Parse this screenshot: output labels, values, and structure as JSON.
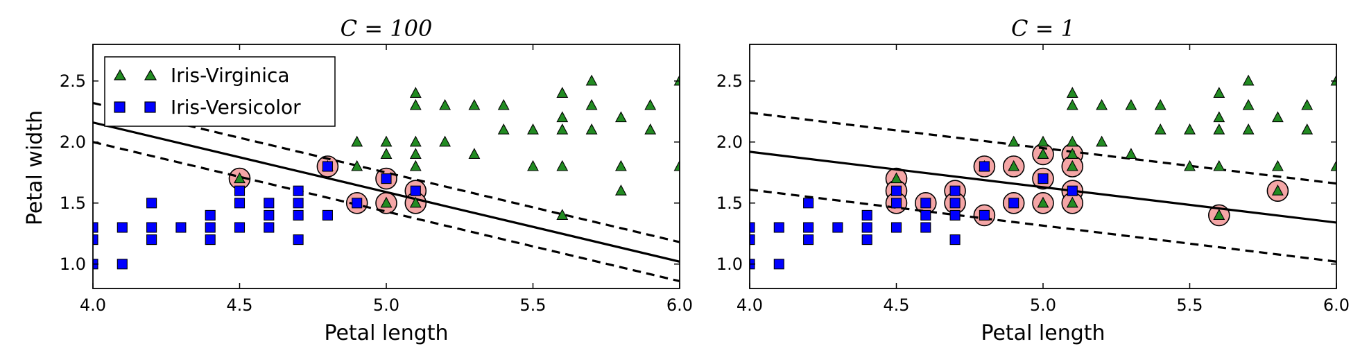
{
  "chart_data": [
    {
      "type": "scatter",
      "title": "C = 100",
      "xlabel": "Petal length",
      "ylabel": "Petal width",
      "xlim": [
        4.0,
        6.0
      ],
      "ylim": [
        0.8,
        2.8
      ],
      "xticks": [
        "4.0",
        "4.5",
        "5.0",
        "5.5",
        "6.0"
      ],
      "yticks": [
        "1.0",
        "1.5",
        "2.0",
        "2.5"
      ],
      "grid": false,
      "legend": {
        "placement": "top-left",
        "entries": [
          "Iris-Virginica",
          "Iris-Versicolor"
        ]
      },
      "series": [
        {
          "name": "Iris-Virginica",
          "marker": "triangle",
          "color": "#228B22",
          "points": [
            [
              4.5,
              1.7
            ],
            [
              4.8,
              1.8
            ],
            [
              4.9,
              2.0
            ],
            [
              4.9,
              1.8
            ],
            [
              5.0,
              2.0
            ],
            [
              5.0,
              1.9
            ],
            [
              5.0,
              1.5
            ],
            [
              5.1,
              2.4
            ],
            [
              5.1,
              2.3
            ],
            [
              5.1,
              2.0
            ],
            [
              5.1,
              1.9
            ],
            [
              5.1,
              1.8
            ],
            [
              5.1,
              1.5
            ],
            [
              5.2,
              2.3
            ],
            [
              5.2,
              2.0
            ],
            [
              5.3,
              2.3
            ],
            [
              5.3,
              1.9
            ],
            [
              5.4,
              2.3
            ],
            [
              5.4,
              2.1
            ],
            [
              5.5,
              2.1
            ],
            [
              5.5,
              1.8
            ],
            [
              5.6,
              2.4
            ],
            [
              5.6,
              2.2
            ],
            [
              5.6,
              2.1
            ],
            [
              5.6,
              1.8
            ],
            [
              5.6,
              1.4
            ],
            [
              5.7,
              2.5
            ],
            [
              5.7,
              2.3
            ],
            [
              5.7,
              2.1
            ],
            [
              5.8,
              2.2
            ],
            [
              5.8,
              1.8
            ],
            [
              5.8,
              1.6
            ],
            [
              5.9,
              2.3
            ],
            [
              5.9,
              2.1
            ],
            [
              6.0,
              2.5
            ],
            [
              6.0,
              1.8
            ]
          ]
        },
        {
          "name": "Iris-Versicolor",
          "marker": "square",
          "color": "#0000FF",
          "points": [
            [
              4.0,
              1.3
            ],
            [
              4.0,
              1.2
            ],
            [
              4.0,
              1.0
            ],
            [
              4.1,
              1.3
            ],
            [
              4.1,
              1.0
            ],
            [
              4.2,
              1.5
            ],
            [
              4.2,
              1.3
            ],
            [
              4.2,
              1.2
            ],
            [
              4.3,
              1.3
            ],
            [
              4.4,
              1.4
            ],
            [
              4.4,
              1.3
            ],
            [
              4.4,
              1.2
            ],
            [
              4.5,
              1.6
            ],
            [
              4.5,
              1.5
            ],
            [
              4.5,
              1.3
            ],
            [
              4.6,
              1.5
            ],
            [
              4.6,
              1.4
            ],
            [
              4.6,
              1.3
            ],
            [
              4.7,
              1.6
            ],
            [
              4.7,
              1.5
            ],
            [
              4.7,
              1.4
            ],
            [
              4.7,
              1.2
            ],
            [
              4.8,
              1.8
            ],
            [
              4.8,
              1.4
            ],
            [
              4.9,
              1.5
            ],
            [
              5.0,
              1.7
            ],
            [
              5.1,
              1.6
            ]
          ]
        }
      ],
      "support_vectors": [
        [
          4.5,
          1.7
        ],
        [
          4.8,
          1.8
        ],
        [
          4.9,
          1.5
        ],
        [
          5.0,
          1.7
        ],
        [
          5.0,
          1.5
        ],
        [
          5.1,
          1.6
        ],
        [
          5.1,
          1.5
        ]
      ],
      "decision_boundary": {
        "x": [
          4.0,
          6.0
        ],
        "y": [
          2.16,
          1.02
        ]
      },
      "margins": [
        {
          "x": [
            4.0,
            6.0
          ],
          "y": [
            2.32,
            1.18
          ]
        },
        {
          "x": [
            4.0,
            6.0
          ],
          "y": [
            2.0,
            0.86
          ]
        }
      ]
    },
    {
      "type": "scatter",
      "title": "C = 1",
      "xlabel": "Petal length",
      "ylabel": "",
      "xlim": [
        4.0,
        6.0
      ],
      "ylim": [
        0.8,
        2.8
      ],
      "xticks": [
        "4.0",
        "4.5",
        "5.0",
        "5.5",
        "6.0"
      ],
      "yticks": [
        "1.0",
        "1.5",
        "2.0",
        "2.5"
      ],
      "grid": false,
      "series": [
        {
          "name": "Iris-Virginica",
          "marker": "triangle",
          "color": "#228B22",
          "points": [
            [
              4.5,
              1.7
            ],
            [
              4.8,
              1.8
            ],
            [
              4.9,
              2.0
            ],
            [
              4.9,
              1.8
            ],
            [
              5.0,
              2.0
            ],
            [
              5.0,
              1.9
            ],
            [
              5.0,
              1.5
            ],
            [
              5.1,
              2.4
            ],
            [
              5.1,
              2.3
            ],
            [
              5.1,
              2.0
            ],
            [
              5.1,
              1.9
            ],
            [
              5.1,
              1.8
            ],
            [
              5.1,
              1.5
            ],
            [
              5.2,
              2.3
            ],
            [
              5.2,
              2.0
            ],
            [
              5.3,
              2.3
            ],
            [
              5.3,
              1.9
            ],
            [
              5.4,
              2.3
            ],
            [
              5.4,
              2.1
            ],
            [
              5.5,
              2.1
            ],
            [
              5.5,
              1.8
            ],
            [
              5.6,
              2.4
            ],
            [
              5.6,
              2.2
            ],
            [
              5.6,
              2.1
            ],
            [
              5.6,
              1.8
            ],
            [
              5.6,
              1.4
            ],
            [
              5.7,
              2.5
            ],
            [
              5.7,
              2.3
            ],
            [
              5.7,
              2.1
            ],
            [
              5.8,
              2.2
            ],
            [
              5.8,
              1.8
            ],
            [
              5.8,
              1.6
            ],
            [
              5.9,
              2.3
            ],
            [
              5.9,
              2.1
            ],
            [
              6.0,
              2.5
            ],
            [
              6.0,
              1.8
            ]
          ]
        },
        {
          "name": "Iris-Versicolor",
          "marker": "square",
          "color": "#0000FF",
          "points": [
            [
              4.0,
              1.3
            ],
            [
              4.0,
              1.2
            ],
            [
              4.0,
              1.0
            ],
            [
              4.1,
              1.3
            ],
            [
              4.1,
              1.0
            ],
            [
              4.2,
              1.5
            ],
            [
              4.2,
              1.3
            ],
            [
              4.2,
              1.2
            ],
            [
              4.3,
              1.3
            ],
            [
              4.4,
              1.4
            ],
            [
              4.4,
              1.3
            ],
            [
              4.4,
              1.2
            ],
            [
              4.5,
              1.6
            ],
            [
              4.5,
              1.5
            ],
            [
              4.5,
              1.3
            ],
            [
              4.6,
              1.5
            ],
            [
              4.6,
              1.4
            ],
            [
              4.6,
              1.3
            ],
            [
              4.7,
              1.6
            ],
            [
              4.7,
              1.5
            ],
            [
              4.7,
              1.4
            ],
            [
              4.7,
              1.2
            ],
            [
              4.8,
              1.8
            ],
            [
              4.8,
              1.4
            ],
            [
              4.9,
              1.5
            ],
            [
              5.0,
              1.7
            ],
            [
              5.1,
              1.6
            ]
          ]
        }
      ],
      "support_vectors": [
        [
          4.5,
          1.7
        ],
        [
          4.5,
          1.6
        ],
        [
          4.5,
          1.5
        ],
        [
          4.6,
          1.5
        ],
        [
          4.7,
          1.6
        ],
        [
          4.7,
          1.5
        ],
        [
          4.8,
          1.8
        ],
        [
          4.8,
          1.4
        ],
        [
          4.9,
          1.8
        ],
        [
          4.9,
          1.5
        ],
        [
          5.0,
          1.9
        ],
        [
          5.0,
          1.7
        ],
        [
          5.0,
          1.5
        ],
        [
          5.1,
          1.9
        ],
        [
          5.1,
          1.8
        ],
        [
          5.1,
          1.6
        ],
        [
          5.1,
          1.5
        ],
        [
          5.6,
          1.4
        ],
        [
          5.8,
          1.6
        ]
      ],
      "decision_boundary": {
        "x": [
          4.0,
          6.0
        ],
        "y": [
          1.92,
          1.34
        ]
      },
      "margins": [
        {
          "x": [
            4.0,
            6.0
          ],
          "y": [
            2.24,
            1.66
          ]
        },
        {
          "x": [
            4.0,
            6.0
          ],
          "y": [
            1.61,
            1.02
          ]
        }
      ]
    }
  ]
}
